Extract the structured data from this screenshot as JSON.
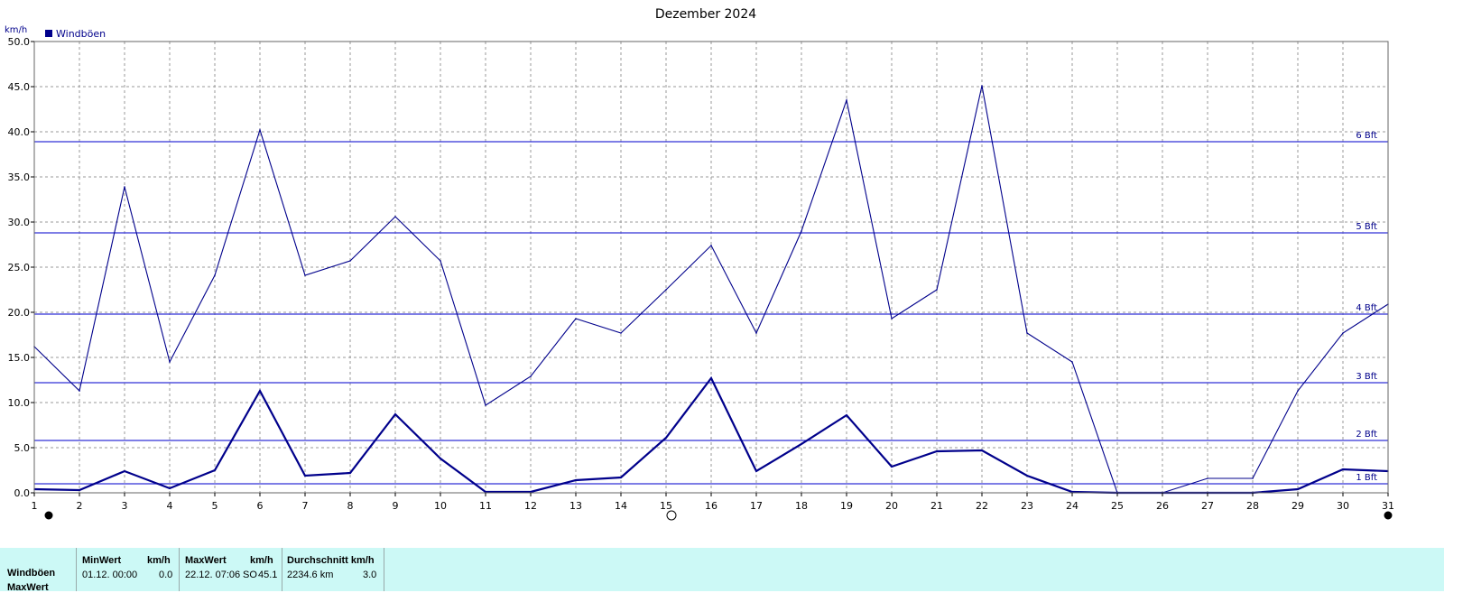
{
  "chart_data": {
    "type": "line",
    "title": "Dezember 2024",
    "ylabel": "km/h",
    "ylim": [
      0,
      50
    ],
    "yticks": [
      "0.0",
      "5.0",
      "10.0",
      "15.0",
      "20.0",
      "25.0",
      "30.0",
      "35.0",
      "40.0",
      "45.0",
      "50.0"
    ],
    "x": [
      1,
      2,
      3,
      4,
      5,
      6,
      7,
      8,
      9,
      10,
      11,
      12,
      13,
      14,
      15,
      16,
      17,
      18,
      19,
      20,
      21,
      22,
      23,
      24,
      25,
      26,
      27,
      28,
      29,
      30,
      31
    ],
    "xticks": [
      "1",
      "2",
      "3",
      "4",
      "5",
      "6",
      "7",
      "8",
      "9",
      "10",
      "11",
      "12",
      "13",
      "14",
      "15",
      "16",
      "17",
      "18",
      "19",
      "20",
      "21",
      "22",
      "23",
      "24",
      "25",
      "26",
      "27",
      "28",
      "29",
      "30",
      "31"
    ],
    "grid": true,
    "legend": [
      {
        "name": "Windböen",
        "color": "#00008b"
      }
    ],
    "legend_position": "top-left",
    "series": [
      {
        "name": "Windböen",
        "color": "#00008b",
        "values": [
          16.2,
          11.3,
          33.9,
          14.5,
          24.1,
          40.2,
          24.1,
          25.7,
          30.6,
          25.7,
          9.7,
          12.9,
          19.3,
          17.7,
          22.5,
          27.4,
          17.7,
          29.0,
          43.5,
          19.3,
          22.5,
          45.1,
          17.7,
          14.5,
          0.0,
          0.0,
          1.6,
          1.6,
          11.3,
          17.7,
          20.9
        ]
      },
      {
        "name": "",
        "color": "#00008b",
        "values": [
          0.4,
          0.3,
          2.4,
          0.5,
          2.5,
          11.3,
          1.9,
          2.2,
          8.7,
          3.8,
          0.1,
          0.1,
          1.4,
          1.7,
          6.1,
          12.7,
          2.4,
          5.4,
          8.6,
          2.9,
          4.6,
          4.7,
          1.9,
          0.1,
          0.0,
          0.0,
          0.0,
          0.0,
          0.4,
          2.6,
          2.4
        ]
      }
    ],
    "bft_lines": [
      {
        "label": "1 Bft",
        "value": 1.0
      },
      {
        "label": "2 Bft",
        "value": 5.8
      },
      {
        "label": "3 Bft",
        "value": 12.2
      },
      {
        "label": "4 Bft",
        "value": 19.8
      },
      {
        "label": "5 Bft",
        "value": 28.8
      },
      {
        "label": "6 Bft",
        "value": 38.9
      }
    ],
    "moon_phases": [
      {
        "day": 1,
        "phase": "new"
      },
      {
        "day": 15,
        "phase": "full"
      },
      {
        "day": 31,
        "phase": "new"
      }
    ]
  },
  "stats": {
    "rows": [
      "Windböen",
      "MaxWert"
    ],
    "min_header": "MinWert",
    "min_unit": "km/h",
    "min_time": "01.12.  00:00",
    "min_value": "0.0",
    "max_header": "MaxWert",
    "max_unit": "km/h",
    "max_time": "22.12.  07:06",
    "max_dir": "SO",
    "max_value": "45.1",
    "avg_header": "Durchschnitt km/h",
    "avg_distance": "2234.6 km",
    "avg_value": "3.0"
  }
}
